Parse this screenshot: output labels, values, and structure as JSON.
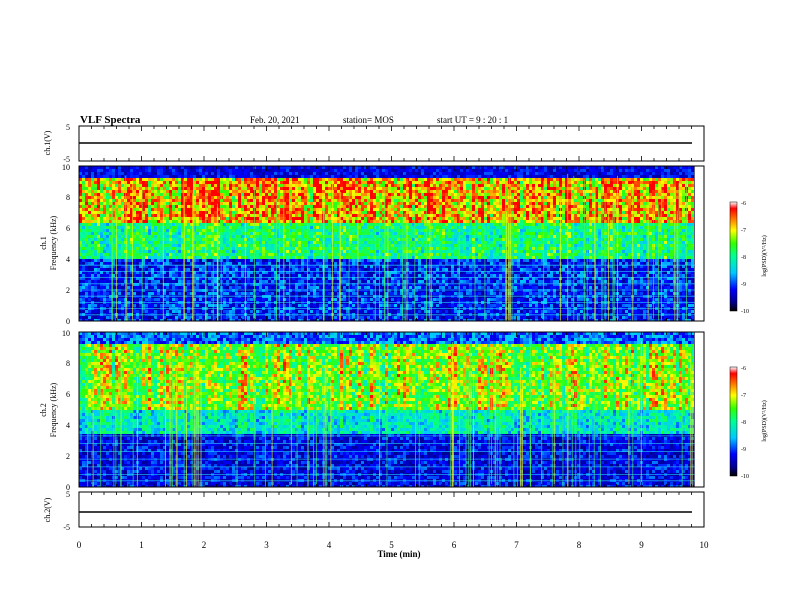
{
  "header": {
    "title": "VLF Spectra",
    "date": "Feb. 20, 2021",
    "station": "station= MOS",
    "start_ut": "start UT =  9 : 20 : 1"
  },
  "chart_data": [
    {
      "id": "ch1-waveform",
      "type": "line",
      "ylabel": "ch.1(V)",
      "ylim": [
        -5,
        5
      ],
      "yticks": [
        "5",
        "-5"
      ],
      "x": [
        0,
        10
      ],
      "values": [
        0,
        0
      ],
      "xlim": [
        0,
        10
      ]
    },
    {
      "id": "ch1-spectrogram",
      "type": "heatmap",
      "ylabel_top": "ch.1",
      "ylabel": "Frequency (kHz)",
      "ylim": [
        0,
        10
      ],
      "yticks": [
        "0",
        "2",
        "4",
        "6",
        "8",
        "10"
      ],
      "xlim": [
        0,
        10
      ],
      "data_end_min": 9.85,
      "colorbar": {
        "label": "log(PSD)(V²/Hz)",
        "range": [
          -10,
          -6
        ],
        "ticks": [
          "-6",
          "-7",
          "-8",
          "-9",
          "-10"
        ]
      }
    },
    {
      "id": "ch2-spectrogram",
      "type": "heatmap",
      "ylabel_top": "ch.2",
      "ylabel": "Frequency (kHz)",
      "ylim": [
        0,
        10
      ],
      "yticks": [
        "0",
        "2",
        "4",
        "6",
        "8",
        "10"
      ],
      "xlim": [
        0,
        10
      ],
      "data_end_min": 9.85,
      "colorbar": {
        "label": "log(PSD)(V²/Hz)",
        "range": [
          -10,
          -6
        ],
        "ticks": [
          "-6",
          "-7",
          "-8",
          "-9",
          "-10"
        ]
      }
    },
    {
      "id": "ch2-waveform",
      "type": "line",
      "ylabel": "ch.2(V)",
      "ylim": [
        -5,
        5
      ],
      "yticks": [
        "5",
        "-5"
      ],
      "x": [
        0,
        10
      ],
      "values": [
        0,
        0
      ],
      "xlim": [
        0,
        10
      ]
    }
  ],
  "x_axis": {
    "label": "Time (min)",
    "ticks": [
      "0",
      "1",
      "2",
      "3",
      "4",
      "5",
      "6",
      "7",
      "8",
      "9",
      "10"
    ]
  }
}
